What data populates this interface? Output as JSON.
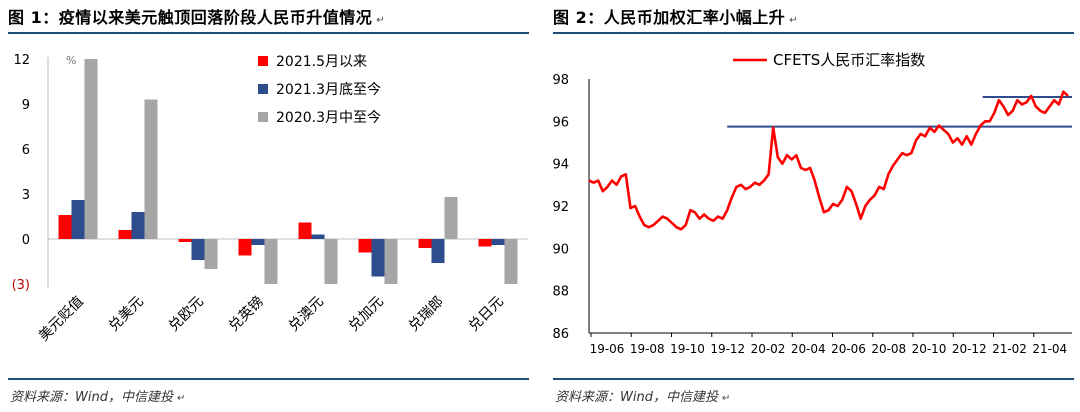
{
  "charts": [
    {
      "title": "图 1：疫情以来美元触顶回落阶段人民币升值情况",
      "source": "资料来源：Wind，中信建投",
      "chart_data": {
        "type": "bar",
        "unit": "%",
        "categories": [
          "美元贬值",
          "兑美元",
          "兑欧元",
          "兑英镑",
          "兑澳元",
          "兑加元",
          "兑瑞郎",
          "兑日元"
        ],
        "yticks": [
          12,
          9,
          6,
          3,
          0
        ],
        "neg_tick_label": "(3)",
        "ylim": [
          -3,
          12
        ],
        "legend_position": "top-right",
        "series": [
          {
            "name": "2021.5月以来",
            "color": "#ff0000",
            "values": [
              1.6,
              0.6,
              -0.2,
              -1.1,
              1.1,
              -0.9,
              -0.6,
              -0.5
            ]
          },
          {
            "name": "2021.3月底至今",
            "color": "#2e4d8f",
            "values": [
              2.6,
              1.8,
              -1.4,
              -0.4,
              0.3,
              -2.5,
              -1.6,
              -0.4
            ]
          },
          {
            "name": "2020.3月中至今",
            "color": "#a6a6a6",
            "values": [
              12.0,
              9.3,
              -2.0,
              -3.0,
              -3.0,
              -3.0,
              2.8,
              -3.0
            ]
          }
        ]
      }
    },
    {
      "title": "图 2：人民币加权汇率小幅上升",
      "source": "资料来源：Wind，中信建投",
      "chart_data": {
        "type": "line",
        "ylim": [
          86,
          98
        ],
        "yticks": [
          98,
          96,
          94,
          92,
          90,
          88,
          86
        ],
        "xlabels": [
          "19-06",
          "19-08",
          "19-10",
          "19-12",
          "20-02",
          "20-04",
          "20-06",
          "20-08",
          "20-10",
          "20-12",
          "21-02",
          "21-04"
        ],
        "legend_position": "top-center",
        "series": [
          {
            "name": "CFETS人民币汇率指数",
            "color": "#ff0000",
            "values": [
              93.2,
              93.1,
              93.2,
              92.7,
              92.9,
              93.2,
              93.0,
              93.4,
              93.5,
              91.9,
              92.0,
              91.5,
              91.1,
              91.0,
              91.1,
              91.3,
              91.5,
              91.4,
              91.2,
              91.0,
              90.9,
              91.1,
              91.8,
              91.7,
              91.4,
              91.6,
              91.4,
              91.3,
              91.5,
              91.4,
              91.8,
              92.4,
              92.9,
              93.0,
              92.8,
              92.9,
              93.1,
              93.0,
              93.2,
              93.5,
              95.7,
              94.3,
              94.0,
              94.4,
              94.2,
              94.4,
              93.8,
              93.7,
              93.8,
              93.2,
              92.4,
              91.7,
              91.8,
              92.1,
              92.0,
              92.3,
              92.9,
              92.7,
              92.1,
              91.4,
              92.0,
              92.3,
              92.5,
              92.9,
              92.8,
              93.5,
              93.9,
              94.2,
              94.5,
              94.4,
              94.5,
              95.1,
              95.4,
              95.3,
              95.7,
              95.5,
              95.8,
              95.6,
              95.4,
              95.0,
              95.2,
              94.9,
              95.3,
              94.9,
              95.4,
              95.8,
              96.0,
              96.0,
              96.4,
              97.0,
              96.7,
              96.3,
              96.5,
              97.0,
              96.8,
              96.9,
              97.2,
              96.7,
              96.5,
              96.4,
              96.7,
              97.0,
              96.8,
              97.4,
              97.2
            ]
          }
        ],
        "reference_lines": [
          {
            "y": 95.75,
            "color": "#2e4d8f",
            "from": 0.286,
            "to": 1.0
          },
          {
            "y": 97.15,
            "color": "#2e4d8f",
            "from": 0.815,
            "to": 1.0
          }
        ]
      }
    }
  ],
  "chart_data": [
    {
      "ref": "charts.0.chart_data"
    },
    {
      "ref": "charts.1.chart_data"
    }
  ],
  "paragraph_mark": "↵"
}
